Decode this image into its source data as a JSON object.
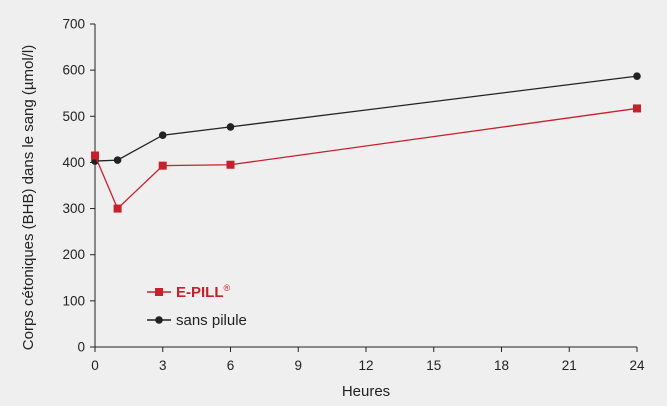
{
  "chart_data": {
    "type": "line",
    "xlabel": "Heures",
    "ylabel": "Corps cétoniques (BHB) dans le sang (µmol/l)",
    "xlim": [
      0,
      24
    ],
    "ylim": [
      0,
      700
    ],
    "x_ticks": [
      0,
      3,
      6,
      9,
      12,
      15,
      18,
      21,
      24
    ],
    "y_ticks": [
      0,
      100,
      200,
      300,
      400,
      500,
      600,
      700
    ],
    "grid": false,
    "legend_position": "bottom-left",
    "series": [
      {
        "name": "E-PILL",
        "name_superscript": "®",
        "color": "#c8202a",
        "marker": "square",
        "x": [
          0,
          1,
          3,
          6,
          24
        ],
        "y": [
          415,
          300,
          393,
          395,
          517
        ]
      },
      {
        "name": "sans pilule",
        "color": "#222222",
        "marker": "circle",
        "x": [
          0,
          1,
          3,
          6,
          24
        ],
        "y": [
          403,
          405,
          459,
          477,
          587
        ]
      }
    ]
  }
}
